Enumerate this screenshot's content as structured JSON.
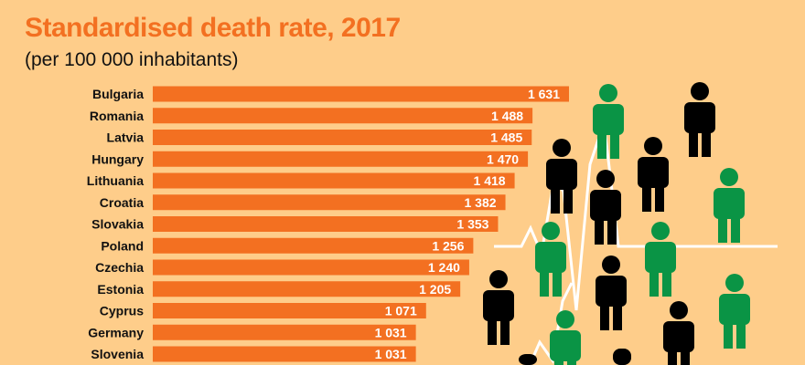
{
  "chart_data": {
    "type": "bar",
    "orientation": "horizontal",
    "title": "Standardised death rate, 2017",
    "subtitle": "(per 100 000 inhabitants)",
    "categories": [
      "Bulgaria",
      "Romania",
      "Latvia",
      "Hungary",
      "Lithuania",
      "Croatia",
      "Slovakia",
      "Poland",
      "Czechia",
      "Estonia",
      "Cyprus",
      "Germany",
      "Slovenia"
    ],
    "values": [
      1631,
      1488,
      1485,
      1470,
      1418,
      1382,
      1353,
      1256,
      1240,
      1205,
      1071,
      1031,
      1031
    ],
    "value_labels": [
      "1 631",
      "1 488",
      "1 485",
      "1 470",
      "1 418",
      "1 382",
      "1 353",
      "1 256",
      "1 240",
      "1 205",
      "1 071",
      "1 031",
      "1 031"
    ],
    "xlim": [
      0,
      1631
    ],
    "grid": false,
    "colors": {
      "bar": "#F37021",
      "background": "#FECD8A",
      "title": "#F37021",
      "person_green": "#0A9445",
      "person_black": "#000000",
      "pulse_line": "#FFFFFF"
    }
  }
}
